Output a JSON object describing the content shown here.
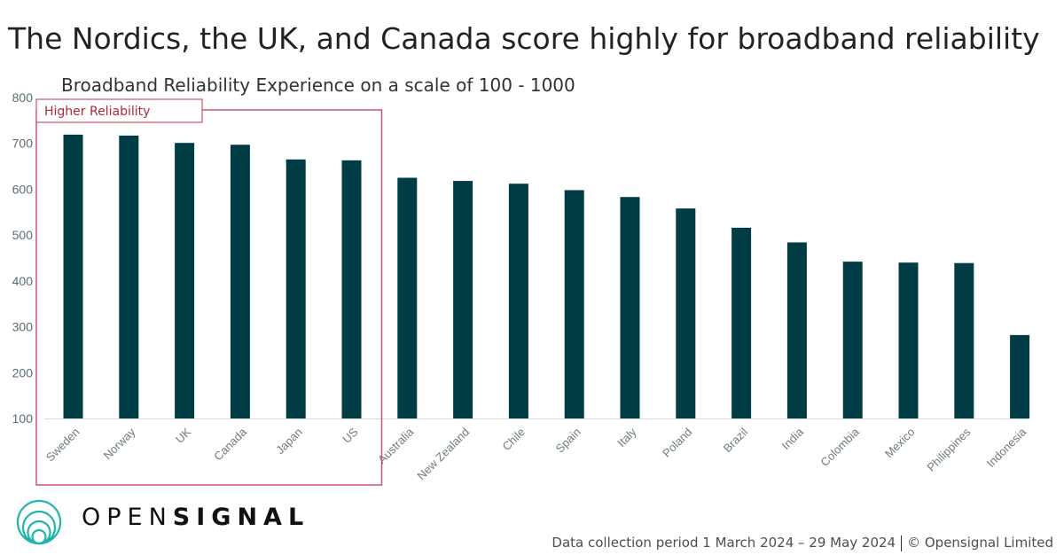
{
  "header": {
    "title": "The Nordics, the UK, and Canada score highly for broadband reliability"
  },
  "highlight": {
    "label": "Higher Reliability",
    "color": "#c9566b",
    "text_color": "#b0273a",
    "first_category": "Sweden",
    "last_category": "US"
  },
  "chart_data": {
    "type": "bar",
    "title": "The Nordics, the UK, and Canada score highly for broadband reliability",
    "subtitle": "Broadband Reliability Experience on a scale of 100 - 1000",
    "xlabel": "",
    "ylabel": "",
    "ylim": [
      100,
      800
    ],
    "yticks": [
      100,
      200,
      300,
      400,
      500,
      600,
      700,
      800
    ],
    "grid": false,
    "bar_color": "#003c43",
    "categories": [
      "Sweden",
      "Norway",
      "UK",
      "Canada",
      "Japan",
      "US",
      "Australia",
      "New Zealand",
      "Chile",
      "Spain",
      "Italy",
      "Poland",
      "Brazil",
      "India",
      "Colombia",
      "Mexico",
      "Philippines",
      "Indonesia"
    ],
    "values": [
      719,
      717,
      701,
      697,
      665,
      663,
      625,
      618,
      612,
      598,
      583,
      558,
      516,
      484,
      442,
      440,
      439,
      282
    ]
  },
  "logo": {
    "light": "OPEN",
    "bold": "SIGNAL",
    "icon": "opensignal-rings-icon",
    "color": "#1fb5ad"
  },
  "footer": {
    "period": "Data collection period 1 March 2024 – 29 May 2024",
    "copyright": "© Opensignal Limited"
  }
}
